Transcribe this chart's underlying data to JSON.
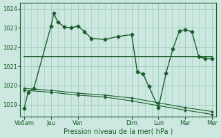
{
  "xlabel": "Pression niveau de la mer( hPa )",
  "bg_color": "#cce8e0",
  "grid_color": "#99ccbb",
  "line_color": "#1a5c2a",
  "ylim": [
    1018.4,
    1024.3
  ],
  "yticks": [
    1019,
    1020,
    1021,
    1022,
    1023,
    1024
  ],
  "day_labels": [
    "Ve6am",
    "Jeu",
    "Ven",
    "Dim",
    "Lun",
    "Mar",
    "Mer"
  ],
  "day_positions": [
    0,
    28,
    56,
    112,
    140,
    168,
    196
  ],
  "xlim": [
    -4,
    200
  ],
  "line1_x": [
    0,
    4,
    10,
    28,
    31,
    35,
    42,
    49,
    56,
    63,
    70,
    84,
    98,
    112,
    118,
    124,
    130,
    140,
    148,
    155,
    162,
    168,
    175,
    182,
    189,
    196
  ],
  "line1_y": [
    1018.8,
    1019.65,
    1019.85,
    1023.1,
    1023.75,
    1023.3,
    1023.05,
    1023.0,
    1023.1,
    1022.8,
    1022.45,
    1022.4,
    1022.55,
    1022.65,
    1020.7,
    1020.6,
    1019.95,
    1018.85,
    1020.65,
    1021.9,
    1022.85,
    1022.9,
    1022.8,
    1021.5,
    1021.4,
    1021.4
  ],
  "line2_x": [
    0,
    196
  ],
  "line2_y": [
    1021.5,
    1021.5
  ],
  "line3a_x": [
    0,
    28,
    56,
    84,
    112,
    140,
    168,
    196
  ],
  "line3a_y": [
    1019.85,
    1019.75,
    1019.6,
    1019.5,
    1019.35,
    1019.1,
    1018.85,
    1018.65
  ],
  "line3b_x": [
    0,
    28,
    56,
    84,
    112,
    140,
    168,
    196
  ],
  "line3b_y": [
    1019.75,
    1019.65,
    1019.5,
    1019.4,
    1019.2,
    1018.95,
    1018.72,
    1018.5
  ]
}
